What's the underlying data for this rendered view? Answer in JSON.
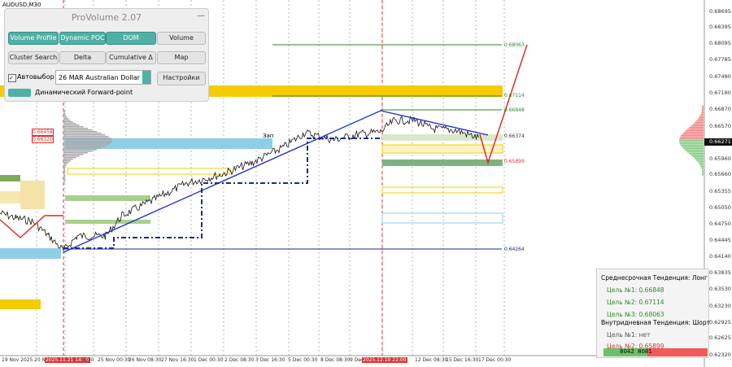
{
  "symbol": "AUDUSD,M30",
  "panel": {
    "title": "ProVolume 2.07",
    "buttons": [
      "Volume Profile",
      "Dynamic POC",
      "DOM",
      "Volume",
      "Cluster Search",
      "Delta",
      "Cumulative Δ",
      "Map"
    ],
    "checkbox": "Автовыбор",
    "instrument": "26 MAR Australian Dollar",
    "settings": "Настройки",
    "forward": "Динамический Forward-point"
  },
  "price_axis": [
    "0.68695",
    "0.68395",
    "0.68095",
    "0.67785",
    "0.67480",
    "0.67180",
    "0.66870",
    "0.66570",
    "0.66271",
    "0.65960",
    "0.65660",
    "0.65355",
    "0.65050",
    "0.64750",
    "0.64445",
    "0.64140",
    "0.63835",
    "0.63530",
    "0.63230",
    "0.62925",
    "0.62625",
    "0.62320"
  ],
  "time_axis": [
    "19 Nov 2025",
    "20 N",
    "2025.11.21 14:00",
    "6:30",
    "25 Nov 00:30",
    "26 Nov 08:30",
    "27 Nov 16:30",
    "1 Dec 00:30",
    "2 Dec 08:30",
    "3 Dec 16:30",
    "5 Dec 00:30",
    "8 Dec 08:30",
    "9 Dec",
    "2025.12.10 22:00",
    "12 Dec 08:30",
    "15 Dec 16:30",
    "17 Dec 00:30"
  ],
  "level_labels": [
    "0.68063",
    "0.67114",
    "0.66848",
    "0.66374",
    "0.65899",
    "0.64264"
  ],
  "left_labels": [
    "0.66458",
    "0.66320"
  ],
  "zone_label": "Зап",
  "info": {
    "long_title": "Среднесрочная Тенденция: Лонг",
    "long_targets": [
      "Цель №1: 0.66848",
      "Цель №2: 0.67114",
      "Цель №3: 0.68063"
    ],
    "short_title": "Внутридневная Тенденция: Шорт",
    "short_targets": [
      "Цель №1: нет",
      "Цель №2: 0.65899"
    ],
    "footer": [
      "8042",
      "8081"
    ]
  }
}
